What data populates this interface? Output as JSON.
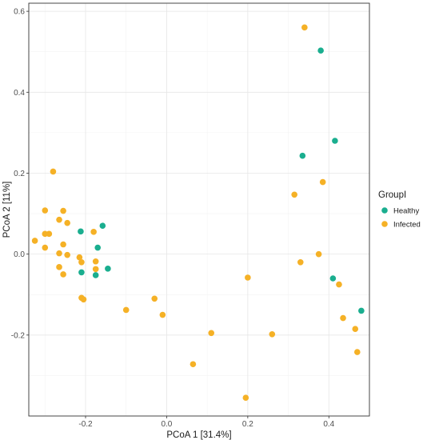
{
  "chart_data": {
    "type": "scatter",
    "xlabel": "PCoA 1 [31.4%]",
    "ylabel": "PCoA 2 [11%]",
    "xlim": [
      -0.34,
      0.5
    ],
    "ylim": [
      -0.4,
      0.62
    ],
    "x_ticks": [
      -0.2,
      0.0,
      0.2,
      0.4
    ],
    "x_tick_labels": [
      "-0.2",
      "0.0",
      "0.2",
      "0.4"
    ],
    "y_ticks": [
      -0.2,
      0.0,
      0.2,
      0.4,
      0.6
    ],
    "y_tick_labels": [
      "-0.2",
      "0.0",
      "0.2",
      "0.4",
      "0.6"
    ],
    "grid": true,
    "legend": {
      "title": "GroupI",
      "position": "right"
    },
    "series": [
      {
        "name": "Healthy",
        "color": "#1aae8f",
        "points": [
          [
            0.38,
            0.503
          ],
          [
            0.415,
            0.28
          ],
          [
            0.335,
            0.243
          ],
          [
            -0.158,
            0.07
          ],
          [
            -0.212,
            0.056
          ],
          [
            -0.17,
            0.016
          ],
          [
            -0.145,
            -0.036
          ],
          [
            -0.21,
            -0.045
          ],
          [
            -0.175,
            -0.052
          ],
          [
            0.41,
            -0.06
          ],
          [
            0.48,
            -0.14
          ]
        ]
      },
      {
        "name": "Infected",
        "color": "#f5b126",
        "points": [
          [
            0.34,
            0.56
          ],
          [
            -0.28,
            0.204
          ],
          [
            0.315,
            0.147
          ],
          [
            0.385,
            0.178
          ],
          [
            -0.3,
            0.108
          ],
          [
            -0.255,
            0.107
          ],
          [
            -0.265,
            0.085
          ],
          [
            -0.245,
            0.077
          ],
          [
            -0.3,
            0.05
          ],
          [
            -0.29,
            0.05
          ],
          [
            -0.18,
            0.055
          ],
          [
            -0.325,
            0.033
          ],
          [
            -0.255,
            0.024
          ],
          [
            -0.3,
            0.016
          ],
          [
            -0.265,
            0.002
          ],
          [
            -0.245,
            -0.002
          ],
          [
            -0.215,
            -0.008
          ],
          [
            -0.175,
            -0.018
          ],
          [
            -0.21,
            -0.02
          ],
          [
            -0.265,
            -0.032
          ],
          [
            -0.175,
            -0.037
          ],
          [
            -0.255,
            -0.05
          ],
          [
            0.33,
            -0.02
          ],
          [
            0.375,
            0.0
          ],
          [
            0.425,
            -0.075
          ],
          [
            0.2,
            -0.058
          ],
          [
            -0.21,
            -0.108
          ],
          [
            -0.205,
            -0.112
          ],
          [
            -0.03,
            -0.11
          ],
          [
            -0.1,
            -0.138
          ],
          [
            -0.01,
            -0.15
          ],
          [
            0.435,
            -0.158
          ],
          [
            0.465,
            -0.185
          ],
          [
            0.11,
            -0.195
          ],
          [
            0.26,
            -0.198
          ],
          [
            0.47,
            -0.242
          ],
          [
            0.065,
            -0.272
          ],
          [
            0.195,
            -0.355
          ]
        ]
      }
    ]
  }
}
